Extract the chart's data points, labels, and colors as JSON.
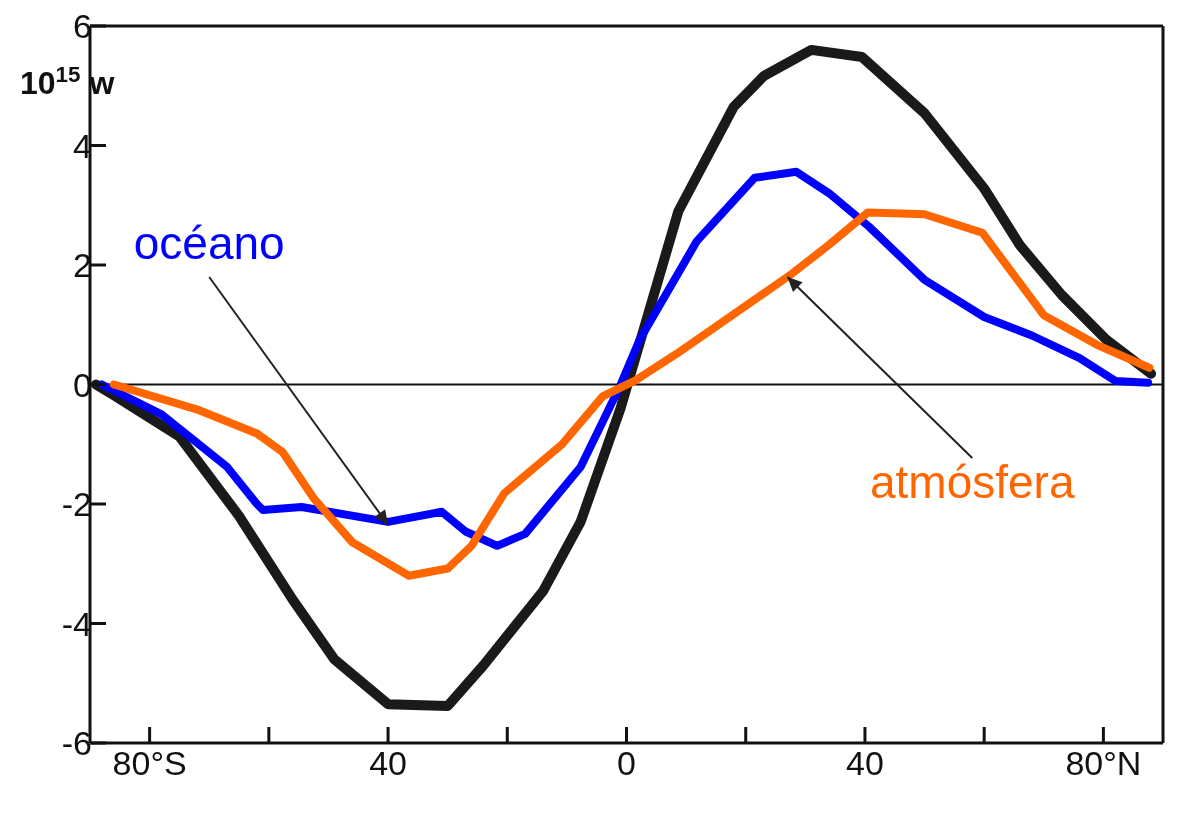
{
  "chart_data": {
    "type": "line",
    "ylabel": "10$^{15}$ w",
    "xlim": [
      -90,
      90
    ],
    "ylim": [
      -6,
      6
    ],
    "xticks": [
      {
        "value": -80,
        "label": "80°S"
      },
      {
        "value": -60,
        "label": null
      },
      {
        "value": -40,
        "label": "40"
      },
      {
        "value": -20,
        "label": null
      },
      {
        "value": 0,
        "label": "0"
      },
      {
        "value": 20,
        "label": null
      },
      {
        "value": 40,
        "label": "40"
      },
      {
        "value": 60,
        "label": null
      },
      {
        "value": 80,
        "label": "80°N"
      }
    ],
    "yticks": [
      -6,
      -4,
      -2,
      0,
      2,
      4,
      6
    ],
    "marker": "none",
    "line_style": "solid",
    "ref_lines": [
      {
        "axis": "y",
        "value": 0
      }
    ],
    "series": [
      {
        "color": "#1a1a1a",
        "x": [
          -89,
          -86,
          -75,
          -65,
          -56,
          -49,
          -40,
          -30,
          -24,
          -14,
          -7.7,
          -1,
          8.7,
          18,
          23,
          31,
          39.5,
          50,
          60,
          66,
          73,
          80.5,
          88
        ],
        "values": [
          0,
          -0.18,
          -0.87,
          -2.2,
          -3.6,
          -4.6,
          -5.35,
          -5.38,
          -4.7,
          -3.46,
          -2.3,
          -0.4,
          2.9,
          4.65,
          5.16,
          5.6,
          5.48,
          4.54,
          3.28,
          2.33,
          1.5,
          0.75,
          0.18
        ]
      },
      {
        "name": "océano",
        "color": "#0000ff",
        "x": [
          -88,
          -78,
          -67,
          -62,
          -61,
          -54.5,
          -40,
          -31,
          -27,
          -21.7,
          -17,
          -7.7,
          -1.2,
          2.2,
          11.8,
          21.5,
          28.5,
          34,
          40.7,
          50,
          60,
          68,
          76,
          82,
          87.5
        ],
        "values": [
          0,
          -0.5,
          -1.38,
          -2,
          -2.1,
          -2.05,
          -2.3,
          -2.13,
          -2.46,
          -2.7,
          -2.5,
          -1.38,
          -0.05,
          0.75,
          2.4,
          3.46,
          3.56,
          3.2,
          2.64,
          1.75,
          1.13,
          0.82,
          0.44,
          0.06,
          0.03
        ]
      },
      {
        "name": "atmósfera",
        "color": "#ff6600",
        "x": [
          -86,
          -71.7,
          -62,
          -57.7,
          -52.5,
          -46,
          -36.5,
          -30,
          -26,
          -20.5,
          -10.8,
          -4,
          1.5,
          8.5,
          27.7,
          34,
          40.5,
          50,
          59.7,
          63.5,
          70,
          79,
          87.7
        ],
        "values": [
          0,
          -0.43,
          -0.82,
          -1.13,
          -1.9,
          -2.64,
          -3.2,
          -3.08,
          -2.7,
          -1.82,
          -1,
          -0.2,
          0.07,
          0.52,
          1.85,
          2.34,
          2.88,
          2.85,
          2.54,
          2.03,
          1.16,
          0.66,
          0.28
        ]
      }
    ]
  }
}
